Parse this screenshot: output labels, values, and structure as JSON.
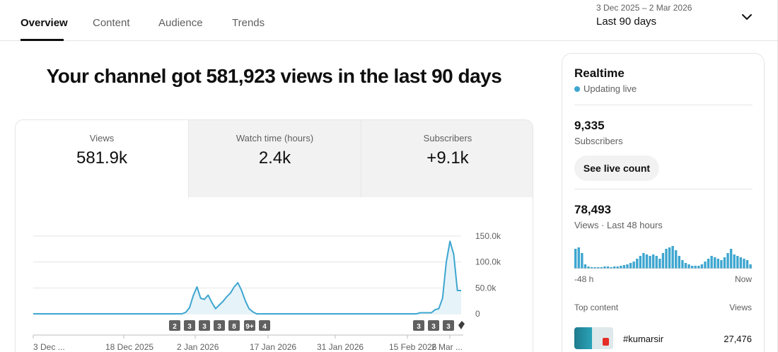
{
  "tabs": [
    {
      "label": "Overview",
      "active": true
    },
    {
      "label": "Content",
      "active": false
    },
    {
      "label": "Audience",
      "active": false
    },
    {
      "label": "Trends",
      "active": false
    }
  ],
  "date_picker": {
    "range": "3 Dec 2025 – 2 Mar 2026",
    "period": "Last 90 days",
    "icon": "chevron-down-icon"
  },
  "headline": "Your channel got 581,923 views in the last 90 days",
  "metrics": [
    {
      "label": "Views",
      "value": "581.9k",
      "selected": true
    },
    {
      "label": "Watch time (hours)",
      "value": "2.4k",
      "selected": false
    },
    {
      "label": "Subscribers",
      "value": "+9.1k",
      "selected": false
    }
  ],
  "chart_data": {
    "type": "area",
    "series": [
      {
        "values": [
          0,
          0,
          0,
          0,
          0,
          0,
          0,
          0,
          0,
          0,
          0,
          0,
          0,
          0,
          0,
          0,
          0,
          0,
          0,
          0,
          0,
          0,
          0,
          0,
          0,
          0,
          0,
          0,
          0,
          0,
          0,
          0,
          0,
          0,
          0,
          0,
          0,
          0,
          0,
          0,
          0,
          3000,
          12000,
          35000,
          52000,
          30000,
          28000,
          36000,
          22000,
          10000,
          17000,
          24000,
          33000,
          40000,
          52000,
          60000,
          45000,
          25000,
          10000,
          4000,
          0,
          0,
          0,
          0,
          0,
          0,
          0,
          0,
          0,
          0,
          0,
          0,
          0,
          0,
          0,
          0,
          0,
          0,
          0,
          0,
          0,
          0,
          0,
          0,
          0,
          0,
          0,
          0,
          0,
          0,
          0,
          0,
          0,
          0,
          0,
          0,
          0,
          0,
          0,
          0,
          0,
          0,
          0,
          0,
          2000,
          2000,
          2000,
          2000,
          8000,
          10000,
          30000,
          100000,
          140000,
          115000,
          45000,
          45000
        ],
        "color": "#3ea6d0"
      }
    ],
    "x_tick_labels": [
      "3 Dec ...",
      "18 Dec 2025",
      "2 Jan 2026",
      "17 Jan 2026",
      "31 Jan 2026",
      "15 Feb 2026",
      "2 Mar ..."
    ],
    "y_tick_labels": [
      "150.0k",
      "100.0k",
      "50.0k",
      "0"
    ],
    "ylim": [
      0,
      150000
    ],
    "grid": true,
    "event_markers": [
      "2",
      "3",
      "3",
      "3",
      "8",
      "9+",
      "4",
      "3",
      "3",
      "3"
    ]
  },
  "realtime": {
    "title": "Realtime",
    "status": "Updating live",
    "subscribers_value": "9,335",
    "subscribers_label": "Subscribers",
    "live_button": "See live count",
    "views_value": "78,493",
    "views_label": "Views · Last 48 hours",
    "axis_start": "-48 h",
    "axis_end": "Now",
    "bars": [
      28,
      30,
      22,
      6,
      3,
      2,
      2,
      2,
      2,
      3,
      3,
      2,
      3,
      3,
      4,
      5,
      6,
      8,
      10,
      14,
      18,
      22,
      20,
      18,
      20,
      18,
      14,
      22,
      28,
      30,
      32,
      26,
      18,
      12,
      8,
      6,
      4,
      4,
      4,
      6,
      10,
      14,
      18,
      16,
      14,
      12,
      16,
      22,
      28,
      20,
      18,
      16,
      14,
      12,
      6
    ],
    "top_content_label": "Top content",
    "top_views_label": "Views",
    "top_items": [
      {
        "title": "#kumarsir",
        "views": "27,476"
      }
    ]
  }
}
